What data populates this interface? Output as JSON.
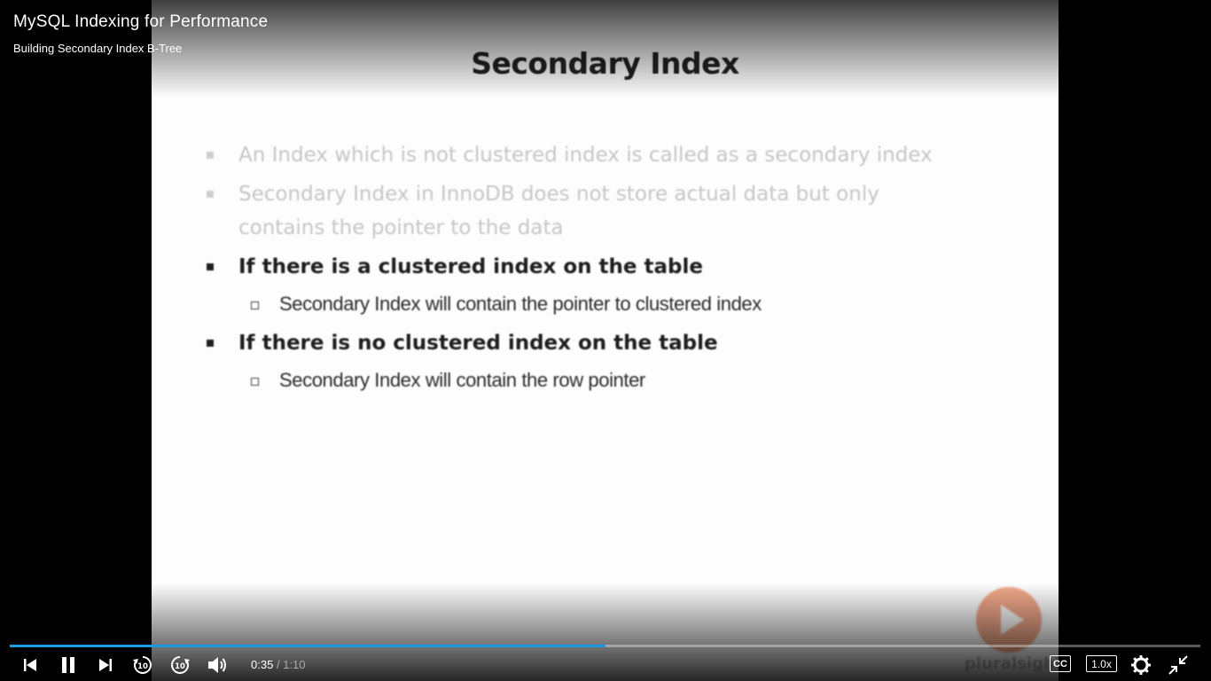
{
  "header": {
    "course_title": "MySQL Indexing for Performance",
    "clip_title": "Building Secondary Index B-Tree"
  },
  "slide": {
    "title": "Secondary Index",
    "bullets": [
      {
        "text": "An Index which is not clustered index is called as a secondary index",
        "style": "faded"
      },
      {
        "text": "Secondary Index in InnoDB does not store actual data but only contains the pointer to the data",
        "style": "faded"
      },
      {
        "text": "If there is a clustered index on the table",
        "style": "strong",
        "sub": "Secondary Index will contain the pointer to clustered index"
      },
      {
        "text": "If there is no clustered index on the table",
        "style": "strong",
        "sub": "Secondary Index will contain the row pointer"
      }
    ],
    "watermark": "pluralsight"
  },
  "player": {
    "progress_percent": 50,
    "current_time": "0:35",
    "separator": "/",
    "duration": "1:10",
    "cc_label": "CC",
    "speed_label": "1.0x",
    "accent_color": "#1a9ae0",
    "icons": [
      "skip-previous-icon",
      "pause-icon",
      "skip-next-icon",
      "rewind-10-icon",
      "forward-10-icon",
      "volume-icon",
      "closed-captions-icon",
      "playback-speed",
      "settings-gear-icon",
      "exit-fullscreen-icon"
    ]
  }
}
